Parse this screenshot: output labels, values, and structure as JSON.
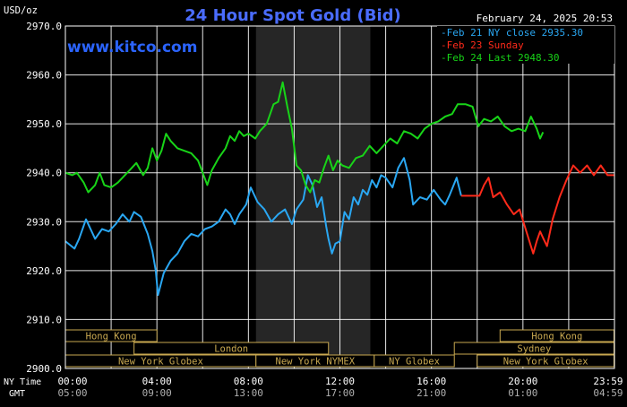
{
  "header": {
    "units": "USD/oz",
    "title": "24 Hour Spot Gold (Bid)",
    "date": "February 24, 2025 20:53",
    "site": "www.kitco.com"
  },
  "colors": {
    "background": "#000000",
    "grid": "#ffffff",
    "title": "#4a6cff",
    "site": "#2b64ff",
    "ny_close": "#2aa7f2",
    "sunday": "#ff2a1a",
    "last": "#18d418",
    "shade": "#262626",
    "session_border": "#c8a850"
  },
  "legend": [
    {
      "key": "ny_close",
      "label": "Feb 21 NY close 2935.30"
    },
    {
      "key": "sunday",
      "label": "Feb 23 Sunday"
    },
    {
      "key": "last",
      "label": "Feb 24 Last 2948.30"
    }
  ],
  "axis_left_labels": [
    "NY Time",
    "GMT"
  ],
  "chart_data": {
    "type": "line",
    "title": "24 Hour Spot Gold (Bid)",
    "ylabel": "USD/oz",
    "xlim": [
      0,
      24
    ],
    "ylim": [
      2900,
      2970
    ],
    "grid": true,
    "legend_position": "top-right",
    "yticks": [
      "2970.0",
      "2960.0",
      "2950.0",
      "2940.0",
      "2930.0",
      "2920.0",
      "2910.0",
      "2900.0"
    ],
    "ytick_values": [
      2970,
      2960,
      2950,
      2940,
      2930,
      2920,
      2910,
      2900
    ],
    "xticks_ny": [
      "00:00",
      "04:00",
      "08:00",
      "12:00",
      "16:00",
      "20:00",
      "23:59"
    ],
    "xticks_gmt": [
      "05:00",
      "09:00",
      "13:00",
      "17:00",
      "21:00",
      "01:00",
      "04:59"
    ],
    "xtick_values": [
      0,
      4,
      8,
      12,
      16,
      20,
      23.98
    ],
    "shaded_range": [
      8.33,
      13.33
    ],
    "series": [
      {
        "name": "Feb 21 NY close 2935.30",
        "key": "ny_close",
        "points": [
          [
            0.0,
            2926.0
          ],
          [
            0.4,
            2924.5
          ],
          [
            0.6,
            2926.5
          ],
          [
            0.9,
            2930.5
          ],
          [
            1.3,
            2926.5
          ],
          [
            1.6,
            2928.5
          ],
          [
            1.9,
            2928.0
          ],
          [
            2.2,
            2929.5
          ],
          [
            2.5,
            2931.5
          ],
          [
            2.8,
            2930.0
          ],
          [
            3.0,
            2932.0
          ],
          [
            3.3,
            2931.0
          ],
          [
            3.6,
            2927.5
          ],
          [
            3.8,
            2924.0
          ],
          [
            3.95,
            2920.0
          ],
          [
            4.05,
            2915.0
          ],
          [
            4.3,
            2919.5
          ],
          [
            4.6,
            2922.0
          ],
          [
            4.9,
            2923.5
          ],
          [
            5.2,
            2926.0
          ],
          [
            5.5,
            2927.5
          ],
          [
            5.8,
            2927.0
          ],
          [
            6.1,
            2928.5
          ],
          [
            6.4,
            2929.0
          ],
          [
            6.7,
            2930.0
          ],
          [
            7.0,
            2932.5
          ],
          [
            7.2,
            2931.5
          ],
          [
            7.4,
            2929.5
          ],
          [
            7.6,
            2931.5
          ],
          [
            7.9,
            2933.5
          ],
          [
            8.1,
            2937.0
          ],
          [
            8.4,
            2934.0
          ],
          [
            8.7,
            2932.5
          ],
          [
            9.0,
            2930.0
          ],
          [
            9.3,
            2931.5
          ],
          [
            9.6,
            2932.5
          ],
          [
            9.9,
            2929.5
          ],
          [
            10.1,
            2932.5
          ],
          [
            10.4,
            2934.5
          ],
          [
            10.6,
            2939.5
          ],
          [
            10.8,
            2937.5
          ],
          [
            11.0,
            2933.0
          ],
          [
            11.2,
            2935.0
          ],
          [
            11.4,
            2929.0
          ],
          [
            11.5,
            2926.5
          ],
          [
            11.65,
            2923.5
          ],
          [
            11.8,
            2925.5
          ],
          [
            12.0,
            2926.0
          ],
          [
            12.2,
            2932.0
          ],
          [
            12.4,
            2930.5
          ],
          [
            12.6,
            2935.0
          ],
          [
            12.8,
            2933.5
          ],
          [
            13.0,
            2936.5
          ],
          [
            13.2,
            2935.5
          ],
          [
            13.4,
            2938.5
          ],
          [
            13.6,
            2937.0
          ],
          [
            13.8,
            2939.5
          ],
          [
            14.0,
            2939.0
          ],
          [
            14.3,
            2937.0
          ],
          [
            14.55,
            2941.0
          ],
          [
            14.8,
            2943.0
          ],
          [
            15.05,
            2938.5
          ],
          [
            15.2,
            2933.5
          ],
          [
            15.5,
            2935.0
          ],
          [
            15.8,
            2934.5
          ],
          [
            16.1,
            2936.5
          ],
          [
            16.4,
            2934.5
          ],
          [
            16.6,
            2933.5
          ],
          [
            16.8,
            2935.5
          ],
          [
            17.1,
            2939.0
          ],
          [
            17.3,
            2935.3
          ]
        ]
      },
      {
        "name": "Feb 23 Sunday",
        "key": "sunday",
        "points": [
          [
            17.3,
            2935.3
          ],
          [
            18.1,
            2935.3
          ],
          [
            18.3,
            2937.5
          ],
          [
            18.5,
            2939.0
          ],
          [
            18.7,
            2935.0
          ],
          [
            19.0,
            2936.0
          ],
          [
            19.3,
            2933.5
          ],
          [
            19.6,
            2931.5
          ],
          [
            19.85,
            2932.5
          ],
          [
            20.05,
            2929.5
          ],
          [
            20.25,
            2926.5
          ],
          [
            20.45,
            2923.5
          ],
          [
            20.6,
            2926.0
          ],
          [
            20.75,
            2928.0
          ],
          [
            20.9,
            2926.5
          ],
          [
            21.05,
            2925.0
          ],
          [
            21.3,
            2930.5
          ],
          [
            21.6,
            2935.0
          ],
          [
            21.9,
            2938.5
          ],
          [
            22.2,
            2941.5
          ],
          [
            22.5,
            2940.0
          ],
          [
            22.8,
            2941.5
          ],
          [
            23.1,
            2939.5
          ],
          [
            23.4,
            2941.5
          ],
          [
            23.7,
            2939.5
          ],
          [
            23.98,
            2939.5
          ]
        ]
      },
      {
        "name": "Feb 24 Last 2948.30",
        "key": "last",
        "points": [
          [
            0.0,
            2940.0
          ],
          [
            0.3,
            2939.5
          ],
          [
            0.5,
            2940.0
          ],
          [
            0.8,
            2938.0
          ],
          [
            1.0,
            2936.0
          ],
          [
            1.3,
            2937.5
          ],
          [
            1.5,
            2940.0
          ],
          [
            1.7,
            2937.5
          ],
          [
            2.0,
            2937.0
          ],
          [
            2.3,
            2938.0
          ],
          [
            2.6,
            2939.5
          ],
          [
            2.9,
            2941.0
          ],
          [
            3.1,
            2942.0
          ],
          [
            3.4,
            2939.5
          ],
          [
            3.6,
            2941.0
          ],
          [
            3.8,
            2945.0
          ],
          [
            4.0,
            2942.5
          ],
          [
            4.2,
            2944.5
          ],
          [
            4.4,
            2948.0
          ],
          [
            4.6,
            2946.5
          ],
          [
            4.9,
            2945.0
          ],
          [
            5.2,
            2944.5
          ],
          [
            5.5,
            2944.0
          ],
          [
            5.8,
            2942.5
          ],
          [
            6.0,
            2940.0
          ],
          [
            6.2,
            2937.5
          ],
          [
            6.4,
            2940.5
          ],
          [
            6.7,
            2943.0
          ],
          [
            7.0,
            2945.0
          ],
          [
            7.2,
            2947.5
          ],
          [
            7.4,
            2946.5
          ],
          [
            7.6,
            2948.5
          ],
          [
            7.8,
            2947.5
          ],
          [
            8.0,
            2948.0
          ],
          [
            8.3,
            2947.0
          ],
          [
            8.5,
            2948.5
          ],
          [
            8.8,
            2950.0
          ],
          [
            9.1,
            2954.0
          ],
          [
            9.3,
            2954.5
          ],
          [
            9.5,
            2958.5
          ],
          [
            9.7,
            2953.5
          ],
          [
            9.9,
            2949.0
          ],
          [
            10.1,
            2941.5
          ],
          [
            10.3,
            2940.5
          ],
          [
            10.5,
            2937.5
          ],
          [
            10.7,
            2936.0
          ],
          [
            10.9,
            2938.5
          ],
          [
            11.1,
            2938.0
          ],
          [
            11.3,
            2941.0
          ],
          [
            11.5,
            2943.5
          ],
          [
            11.7,
            2940.5
          ],
          [
            11.9,
            2942.5
          ],
          [
            12.1,
            2941.5
          ],
          [
            12.4,
            2941.0
          ],
          [
            12.7,
            2943.0
          ],
          [
            13.0,
            2943.5
          ],
          [
            13.3,
            2945.5
          ],
          [
            13.6,
            2944.0
          ],
          [
            13.9,
            2945.5
          ],
          [
            14.2,
            2947.0
          ],
          [
            14.5,
            2946.0
          ],
          [
            14.8,
            2948.5
          ],
          [
            15.1,
            2948.0
          ],
          [
            15.4,
            2947.0
          ],
          [
            15.7,
            2949.0
          ],
          [
            16.0,
            2950.0
          ],
          [
            16.3,
            2950.5
          ],
          [
            16.6,
            2951.5
          ],
          [
            16.9,
            2952.0
          ],
          [
            17.15,
            2954.0
          ],
          [
            17.5,
            2954.0
          ],
          [
            17.8,
            2953.5
          ],
          [
            18.05,
            2949.5
          ],
          [
            18.3,
            2951.0
          ],
          [
            18.6,
            2950.5
          ],
          [
            18.9,
            2951.5
          ],
          [
            19.2,
            2949.5
          ],
          [
            19.5,
            2948.5
          ],
          [
            19.8,
            2949.0
          ],
          [
            20.1,
            2948.5
          ],
          [
            20.35,
            2951.5
          ],
          [
            20.6,
            2949.0
          ],
          [
            20.75,
            2947.0
          ],
          [
            20.88,
            2948.3
          ]
        ]
      }
    ]
  },
  "sessions": [
    {
      "label": "Hong Kong",
      "row": 0,
      "start": 0.0,
      "end": 4.0
    },
    {
      "label": "Hong Kong",
      "row": 0,
      "start": 19.0,
      "end": 23.98
    },
    {
      "label": "London",
      "row": 1,
      "start": 3.0,
      "end": 11.5
    },
    {
      "label": "Sydney",
      "row": 1,
      "start": 17.0,
      "end": 23.98
    },
    {
      "label": "New York Globex",
      "row": 2,
      "start": 0.0,
      "end": 8.33
    },
    {
      "label": "New York NYMEX",
      "row": 2,
      "start": 8.33,
      "end": 13.5
    },
    {
      "label": "NY Globex",
      "row": 2,
      "start": 13.5,
      "end": 17.0
    },
    {
      "label": "New York Globex",
      "row": 2,
      "start": 18.0,
      "end": 23.98
    }
  ]
}
